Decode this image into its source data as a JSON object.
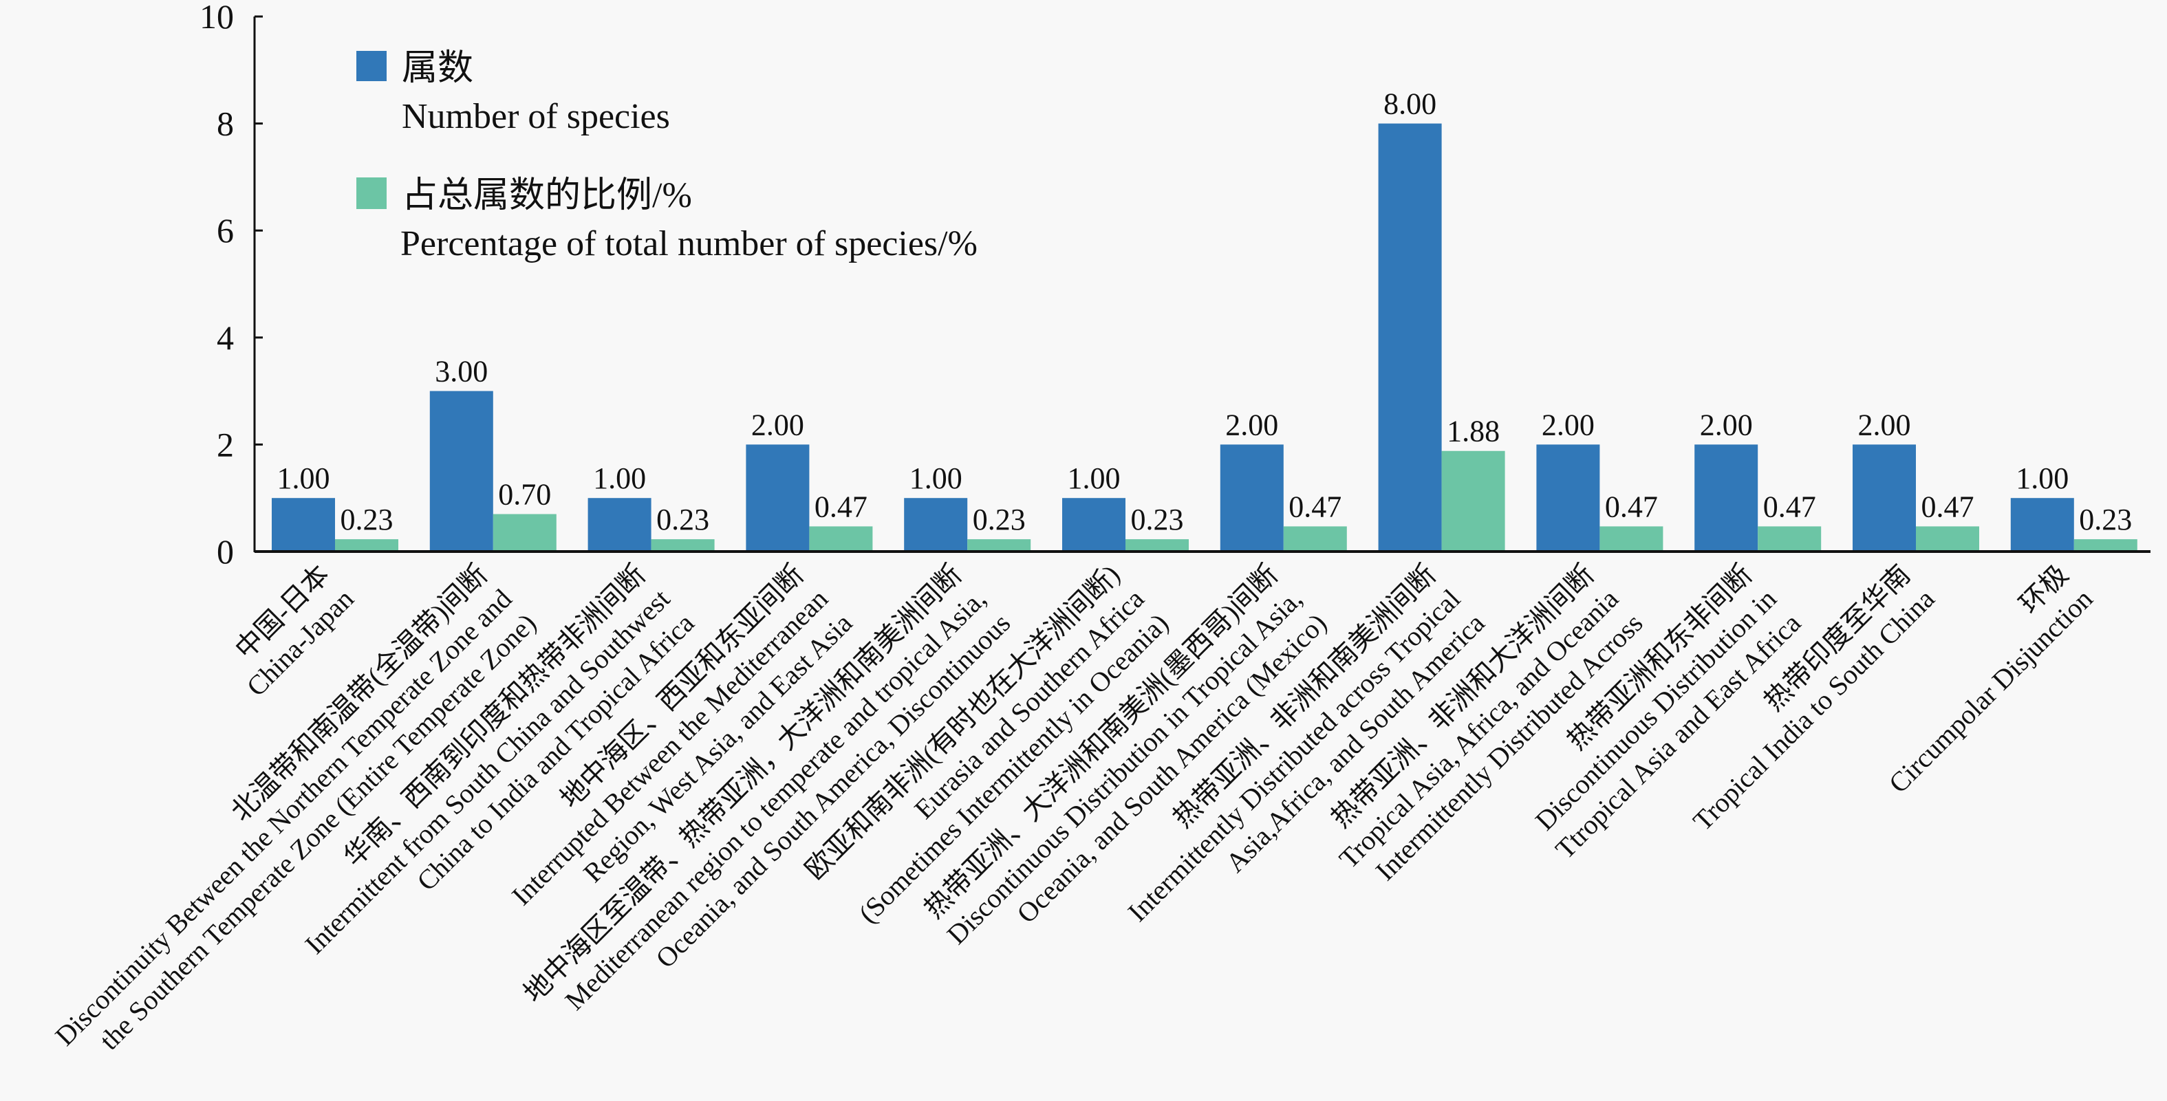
{
  "chart_data": {
    "type": "bar",
    "title": "",
    "xlabel": "",
    "ylabel": "",
    "ylim": [
      0,
      10
    ],
    "yticks": [
      0,
      2,
      4,
      6,
      8,
      10
    ],
    "grid": false,
    "legend_position": "top-left",
    "categories": [
      [
        "中国-日本",
        "China-Japan"
      ],
      [
        "北温带和南温带(全温带)间断",
        "Discontinuity Between the Northern Temperate Zone and",
        "the Southern Temperate Zone (Entire Temperate Zone)"
      ],
      [
        "华南、西南到印度和热带非洲间断",
        "Intermittent from South China and Southwest",
        "China to India and Tropical Africa"
      ],
      [
        "地中海区、西亚和东亚间断",
        "Interrupted Between the Mediterranean",
        "Region, West Asia, and East Asia"
      ],
      [
        "地中海区至温带、热带亚洲，大洋洲和南美洲间断",
        "Mediterranean region to temperate and tropical Asia,",
        "Oceania, and South America, Discontinuous"
      ],
      [
        "欧亚和南非洲(有时也在大洋洲间断)",
        "Eurasia and Southern Africa",
        "(Sometimes Intermittently in Oceania)"
      ],
      [
        "热带亚洲、大洋洲和南美洲(墨西哥)间断",
        "Discontinuous Distribution in Tropical Asia,",
        "Oceania, and South America (Mexico)"
      ],
      [
        "热带亚洲、非洲和南美洲间断",
        "Intermittently Distributed across Tropical",
        "Asia,Africa, and South America"
      ],
      [
        "热带亚洲、非洲和大洋洲间断",
        "Tropical Asia, Africa, and Oceania",
        "Intermittently Distributed Across"
      ],
      [
        "热带亚洲和东非间断",
        "Discontinuous Distribution in",
        "Ttropical Asia and East Africa"
      ],
      [
        "热带印度至华南",
        "Tropical India to South China"
      ],
      [
        "环极",
        "Circumpolar Disjunction"
      ]
    ],
    "series": [
      {
        "name": "属数 Number of species",
        "name_zh": "属数",
        "name_en": "Number of species",
        "color": "#3178b8",
        "values": [
          1.0,
          3.0,
          1.0,
          2.0,
          1.0,
          1.0,
          2.0,
          8.0,
          2.0,
          2.0,
          2.0,
          1.0
        ],
        "labels": [
          "1.00",
          "3.00",
          "1.00",
          "2.00",
          "1.00",
          "1.00",
          "2.00",
          "8.00",
          "2.00",
          "2.00",
          "2.00",
          "1.00"
        ]
      },
      {
        "name": "占总属数的比例/% Percentage of total number of species/%",
        "name_zh": "占总属数的比例/%",
        "name_en": "Percentage of total number of species/%",
        "color": "#6cc5a5",
        "values": [
          0.23,
          0.7,
          0.23,
          0.47,
          0.23,
          0.23,
          0.47,
          1.88,
          0.47,
          0.47,
          0.47,
          0.23
        ],
        "labels": [
          "0.23",
          "0.70",
          "0.23",
          "0.47",
          "0.23",
          "0.23",
          "0.47",
          "1.88",
          "0.47",
          "0.47",
          "0.47",
          "0.23"
        ]
      }
    ]
  }
}
